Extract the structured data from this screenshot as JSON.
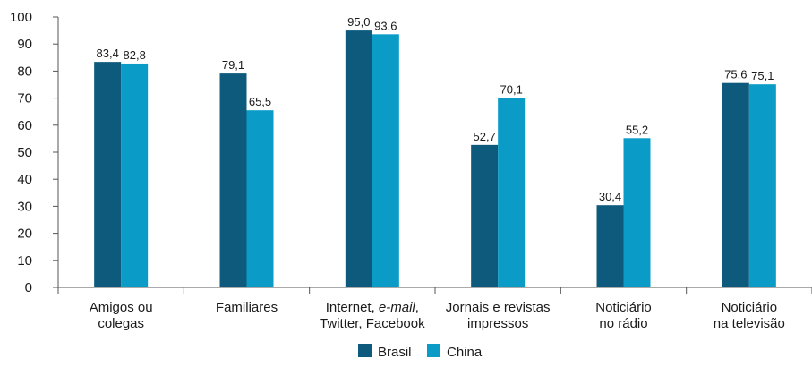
{
  "chart_data": {
    "type": "bar",
    "categories": [
      [
        "Amigos ou",
        "colegas"
      ],
      [
        "Familiares"
      ],
      [
        "Internet, e-mail,",
        "Twitter, Facebook"
      ],
      [
        "Jornais e revistas",
        "impressos"
      ],
      [
        "Noticiário",
        "no rádio"
      ],
      [
        "Noticiário",
        "na televisão"
      ]
    ],
    "series": [
      {
        "name": "Brasil",
        "color": "#0d5a7d",
        "values": [
          83.4,
          79.1,
          95.0,
          52.7,
          30.4,
          75.6
        ],
        "labels": [
          "83,4",
          "79,1",
          "95,0",
          "52,7",
          "30,4",
          "75,6"
        ]
      },
      {
        "name": "China",
        "color": "#0a9bc7",
        "values": [
          82.8,
          65.5,
          93.6,
          70.1,
          55.2,
          75.1
        ],
        "labels": [
          "82,8",
          "65,5",
          "93,6",
          "70,1",
          "55,2",
          "75,1"
        ]
      }
    ],
    "ylim": [
      0,
      100
    ],
    "yticks": [
      0,
      10,
      20,
      30,
      40,
      50,
      60,
      70,
      80,
      90,
      100
    ],
    "legend_position": "bottom-center",
    "grid": false
  }
}
